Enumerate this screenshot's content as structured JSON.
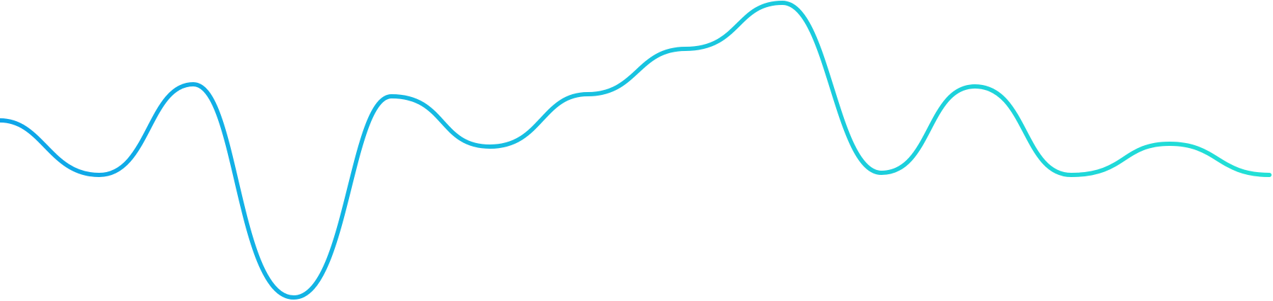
{
  "graphic": {
    "kind": "wave-line",
    "gradient": {
      "start_color": "#0ea5e9",
      "end_color": "#22e1d6"
    }
  }
}
